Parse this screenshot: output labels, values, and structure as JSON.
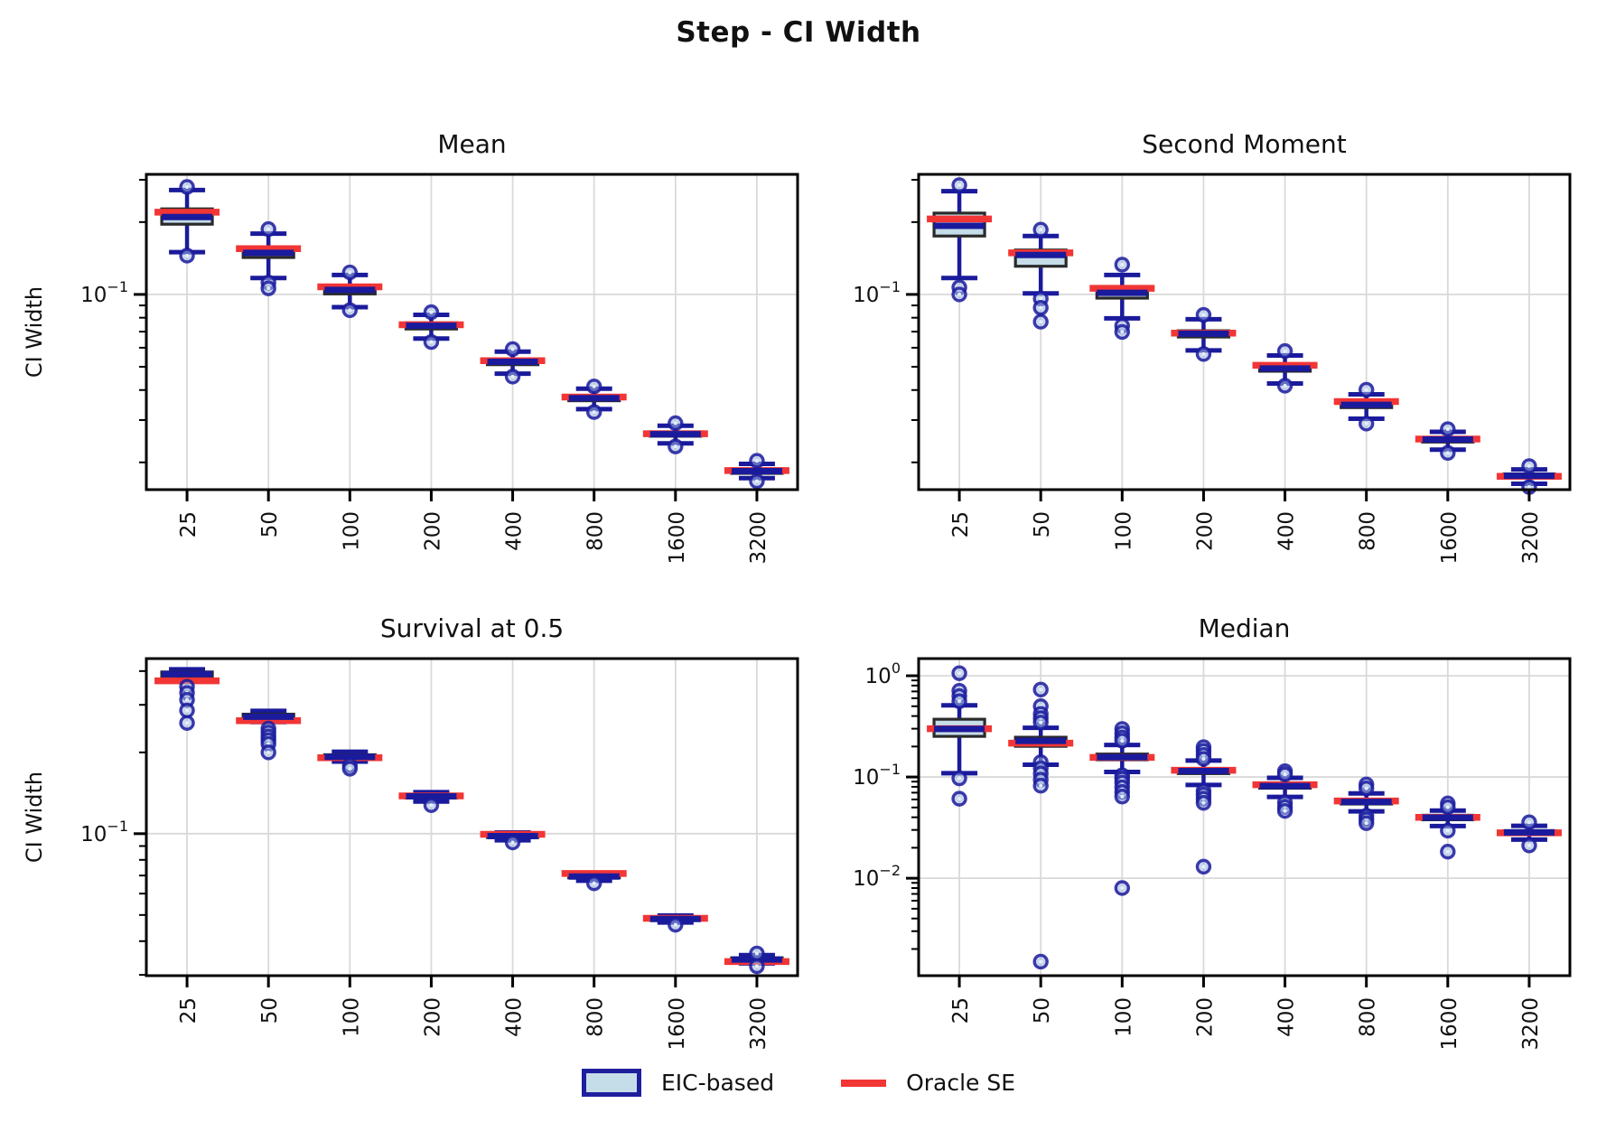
{
  "title": "Step - CI Width",
  "legend": {
    "position": "bottom-center",
    "items": [
      {
        "label": "EIC-based",
        "swatch": "box"
      },
      {
        "label": "Oracle SE",
        "swatch": "line"
      }
    ]
  },
  "colors": {
    "navy": "#1a1a9c",
    "box_fill": "#c5dde9",
    "box_edge": "#2a2a2a",
    "oracle_red": "#f23535",
    "grid": "#d9d9d9",
    "frame": "#000000",
    "flier_inner": "#9fb4e2",
    "text": "#111111"
  },
  "chart_data": [
    {
      "id": "mean",
      "type": "boxplot",
      "title": "Mean",
      "ylabel": "CI Width",
      "yscale": "log",
      "grid": true,
      "axes_rect": [
        162,
        193,
        883,
        542
      ],
      "ylim": [
        0.0154,
        0.316
      ],
      "categories": [
        "25",
        "50",
        "100",
        "200",
        "400",
        "800",
        "1600",
        "3200"
      ],
      "boxes": [
        {
          "whislo": 0.15,
          "q1": 0.196,
          "med": 0.21,
          "q3": 0.227,
          "whishi": 0.272,
          "oracle": 0.22,
          "fliers": [
            0.28,
            0.145
          ]
        },
        {
          "whislo": 0.117,
          "q1": 0.1425,
          "med": 0.149,
          "q3": 0.1555,
          "whishi": 0.179,
          "oracle": 0.155,
          "fliers": [
            0.187,
            0.112,
            0.106
          ]
        },
        {
          "whislo": 0.0885,
          "q1": 0.1005,
          "med": 0.1045,
          "q3": 0.1085,
          "whishi": 0.1205,
          "oracle": 0.1075,
          "fliers": [
            0.1235,
            0.086
          ]
        },
        {
          "whislo": 0.0655,
          "q1": 0.0718,
          "med": 0.074,
          "q3": 0.0762,
          "whishi": 0.0822,
          "oracle": 0.0748,
          "fliers": [
            0.0843,
            0.0634
          ]
        },
        {
          "whislo": 0.0468,
          "q1": 0.051,
          "med": 0.0524,
          "q3": 0.0538,
          "whishi": 0.0578,
          "oracle": 0.053,
          "fliers": [
            0.0592,
            0.0455
          ]
        },
        {
          "whislo": 0.0333,
          "q1": 0.0361,
          "med": 0.037,
          "q3": 0.038,
          "whishi": 0.0405,
          "oracle": 0.0374,
          "fliers": [
            0.0414,
            0.0324
          ]
        },
        {
          "whislo": 0.024,
          "q1": 0.0257,
          "med": 0.0262,
          "q3": 0.0268,
          "whishi": 0.0284,
          "oracle": 0.0263,
          "fliers": [
            0.0291,
            0.0233
          ]
        },
        {
          "whislo": 0.0172,
          "q1": 0.018,
          "med": 0.0184,
          "q3": 0.0188,
          "whishi": 0.0197,
          "oracle": 0.0185,
          "fliers": [
            0.0203,
            0.0167
          ]
        }
      ]
    },
    {
      "id": "second-moment",
      "type": "boxplot",
      "title": "Second Moment",
      "ylabel": null,
      "yscale": "log",
      "grid": true,
      "axes_rect": [
        1017,
        193,
        1738,
        542
      ],
      "ylim": [
        0.0154,
        0.316
      ],
      "categories": [
        "25",
        "50",
        "100",
        "200",
        "400",
        "800",
        "1600",
        "3200"
      ],
      "boxes": [
        {
          "whislo": 0.117,
          "q1": 0.175,
          "med": 0.193,
          "q3": 0.218,
          "whishi": 0.269,
          "oracle": 0.206,
          "fliers": [
            0.285,
            0.107,
            0.1
          ]
        },
        {
          "whislo": 0.101,
          "q1": 0.131,
          "med": 0.146,
          "q3": 0.153,
          "whishi": 0.175,
          "oracle": 0.149,
          "fliers": [
            0.186,
            0.096,
            0.088,
            0.077
          ]
        },
        {
          "whislo": 0.0795,
          "q1": 0.0965,
          "med": 0.1015,
          "q3": 0.106,
          "whishi": 0.1205,
          "oracle": 0.106,
          "fliers": [
            0.133,
            0.074,
            0.0698
          ]
        },
        {
          "whislo": 0.0585,
          "q1": 0.0665,
          "med": 0.0686,
          "q3": 0.0706,
          "whishi": 0.0788,
          "oracle": 0.069,
          "fliers": [
            0.0822,
            0.0565
          ]
        },
        {
          "whislo": 0.0426,
          "q1": 0.0479,
          "med": 0.0492,
          "q3": 0.0506,
          "whishi": 0.0557,
          "oracle": 0.0507,
          "fliers": [
            0.0581,
            0.0417
          ]
        },
        {
          "whislo": 0.0304,
          "q1": 0.0338,
          "med": 0.0347,
          "q3": 0.0356,
          "whishi": 0.0384,
          "oracle": 0.0358,
          "fliers": [
            0.0401,
            0.029
          ]
        },
        {
          "whislo": 0.0226,
          "q1": 0.0243,
          "med": 0.0249,
          "q3": 0.0254,
          "whishi": 0.0268,
          "oracle": 0.025,
          "fliers": [
            0.0275,
            0.0219
          ]
        },
        {
          "whislo": 0.0163,
          "q1": 0.0172,
          "med": 0.0176,
          "q3": 0.0179,
          "whishi": 0.0187,
          "oracle": 0.0175,
          "fliers": [
            0.0193,
            0.0158
          ]
        }
      ]
    },
    {
      "id": "survival",
      "type": "boxplot",
      "title": "Survival at 0.5",
      "ylabel": "CI Width",
      "yscale": "log",
      "grid": true,
      "axes_rect": [
        162,
        729,
        883,
        1080
      ],
      "ylim": [
        0.0298,
        0.445
      ],
      "categories": [
        "25",
        "50",
        "100",
        "200",
        "400",
        "800",
        "1600",
        "3200"
      ],
      "boxes": [
        {
          "whislo": 0.374,
          "q1": 0.383,
          "med": 0.39,
          "q3": 0.397,
          "whishi": 0.406,
          "oracle": 0.368,
          "fliers": [
            0.35,
            0.332,
            0.313,
            0.286,
            0.257
          ]
        },
        {
          "whislo": 0.259,
          "q1": 0.266,
          "med": 0.271,
          "q3": 0.277,
          "whishi": 0.285,
          "oracle": 0.262,
          "fliers": [
            0.245,
            0.237,
            0.229,
            0.222,
            0.215,
            0.2
          ]
        },
        {
          "whislo": 0.185,
          "q1": 0.19,
          "med": 0.1925,
          "q3": 0.196,
          "whishi": 0.201,
          "oracle": 0.191,
          "fliers": [
            0.179,
            0.174
          ]
        },
        {
          "whislo": 0.1315,
          "q1": 0.1355,
          "med": 0.1375,
          "q3": 0.1395,
          "whishi": 0.1425,
          "oracle": 0.138,
          "fliers": [
            0.1275
          ]
        },
        {
          "whislo": 0.0945,
          "q1": 0.0968,
          "med": 0.098,
          "q3": 0.0992,
          "whishi": 0.101,
          "oracle": 0.0995,
          "fliers": [
            0.0928
          ]
        },
        {
          "whislo": 0.067,
          "q1": 0.0686,
          "med": 0.0694,
          "q3": 0.0702,
          "whishi": 0.0715,
          "oracle": 0.0712,
          "fliers": [
            0.0655
          ]
        },
        {
          "whislo": 0.0469,
          "q1": 0.0478,
          "med": 0.0483,
          "q3": 0.0489,
          "whishi": 0.0498,
          "oracle": 0.0486,
          "fliers": [
            0.046
          ]
        },
        {
          "whislo": 0.0331,
          "q1": 0.0338,
          "med": 0.0342,
          "q3": 0.0347,
          "whishi": 0.0355,
          "oracle": 0.0336,
          "fliers": [
            0.036,
            0.0323
          ]
        }
      ]
    },
    {
      "id": "median",
      "type": "boxplot",
      "title": "Median",
      "ylabel": null,
      "yscale": "log",
      "grid": true,
      "axes_rect": [
        1017,
        729,
        1738,
        1080
      ],
      "ylim": [
        0.00109,
        1.478
      ],
      "categories": [
        "25",
        "50",
        "100",
        "200",
        "400",
        "800",
        "1600",
        "3200"
      ],
      "boxes": [
        {
          "whislo": 0.109,
          "q1": 0.252,
          "med": 0.298,
          "q3": 0.372,
          "whishi": 0.51,
          "oracle": 0.3,
          "fliers": [
            1.06,
            0.71,
            0.63,
            0.56,
            0.097,
            0.061
          ]
        },
        {
          "whislo": 0.132,
          "q1": 0.201,
          "med": 0.227,
          "q3": 0.247,
          "whishi": 0.306,
          "oracle": 0.216,
          "fliers": [
            0.73,
            0.5,
            0.42,
            0.38,
            0.345,
            0.14,
            0.122,
            0.108,
            0.094,
            0.082,
            0.0015
          ]
        },
        {
          "whislo": 0.112,
          "q1": 0.148,
          "med": 0.157,
          "q3": 0.1685,
          "whishi": 0.207,
          "oracle": 0.156,
          "fliers": [
            0.298,
            0.27,
            0.246,
            0.228,
            0.104,
            0.096,
            0.088,
            0.079,
            0.071,
            0.064,
            0.008
          ]
        },
        {
          "whislo": 0.0835,
          "q1": 0.108,
          "med": 0.1145,
          "q3": 0.1215,
          "whishi": 0.1455,
          "oracle": 0.1165,
          "fliers": [
            0.197,
            0.181,
            0.165,
            0.151,
            0.073,
            0.067,
            0.061,
            0.0555,
            0.013
          ]
        },
        {
          "whislo": 0.0635,
          "q1": 0.0775,
          "med": 0.0813,
          "q3": 0.0858,
          "whishi": 0.0982,
          "oracle": 0.0838,
          "fliers": [
            0.114,
            0.106,
            0.056,
            0.0505,
            0.0462
          ]
        },
        {
          "whislo": 0.0458,
          "q1": 0.0541,
          "med": 0.0567,
          "q3": 0.0597,
          "whishi": 0.0688,
          "oracle": 0.058,
          "fliers": [
            0.0845,
            0.0772,
            0.0414,
            0.0381,
            0.035
          ]
        },
        {
          "whislo": 0.0328,
          "q1": 0.0378,
          "med": 0.0397,
          "q3": 0.0419,
          "whishi": 0.0466,
          "oracle": 0.0399,
          "fliers": [
            0.0548,
            0.0503,
            0.0295,
            0.0183
          ]
        },
        {
          "whislo": 0.0241,
          "q1": 0.0272,
          "med": 0.0284,
          "q3": 0.0295,
          "whishi": 0.0329,
          "oracle": 0.0281,
          "fliers": [
            0.0357,
            0.0211
          ]
        }
      ]
    }
  ]
}
